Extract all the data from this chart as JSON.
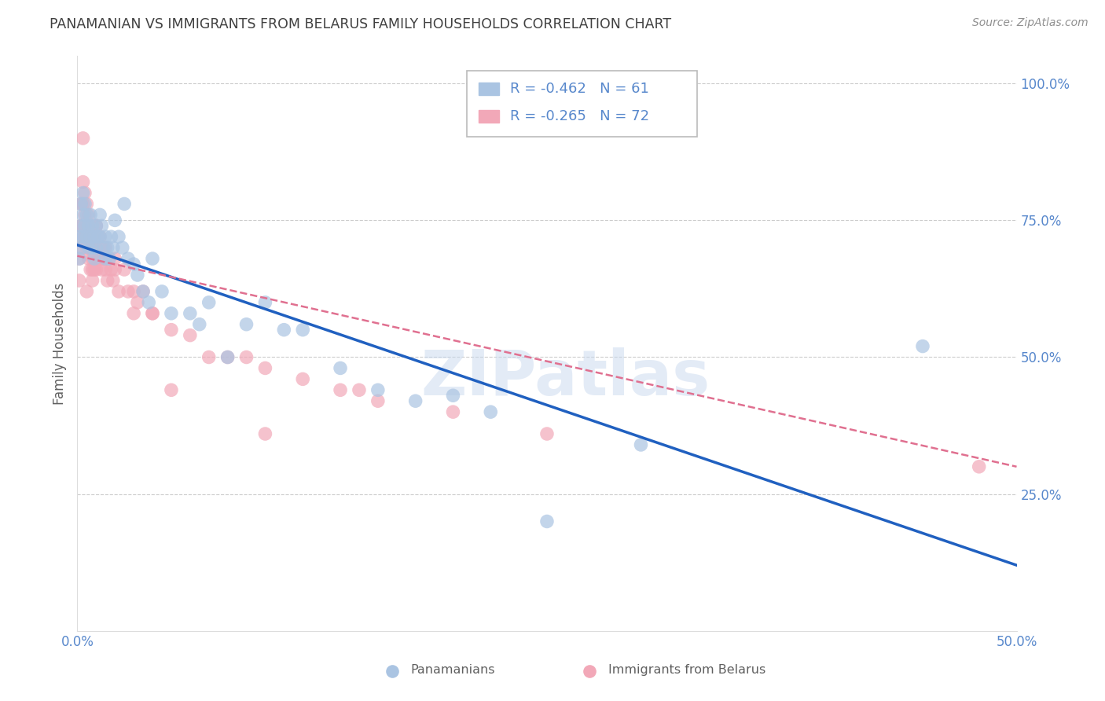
{
  "title": "PANAMANIAN VS IMMIGRANTS FROM BELARUS FAMILY HOUSEHOLDS CORRELATION CHART",
  "source": "Source: ZipAtlas.com",
  "ylabel": "Family Households",
  "watermark": "ZIPatlas",
  "xlim": [
    0.0,
    0.5
  ],
  "ylim": [
    0.0,
    1.05
  ],
  "xticks": [
    0.0,
    0.1,
    0.2,
    0.3,
    0.4,
    0.5
  ],
  "xticklabels": [
    "0.0%",
    "",
    "",
    "",
    "",
    "50.0%"
  ],
  "yticks": [
    0.25,
    0.5,
    0.75,
    1.0
  ],
  "yticklabels": [
    "25.0%",
    "50.0%",
    "75.0%",
    "100.0%"
  ],
  "blue_R": -0.462,
  "blue_N": 61,
  "pink_R": -0.265,
  "pink_N": 72,
  "blue_color": "#aac4e2",
  "pink_color": "#f2a8b8",
  "blue_line_color": "#2060c0",
  "pink_line_color": "#e07090",
  "legend_label_blue": "Panamanians",
  "legend_label_pink": "Immigrants from Belarus",
  "title_color": "#404040",
  "source_color": "#909090",
  "axis_color": "#5888cc",
  "grid_color": "#cccccc",
  "blue_line_x0": 0.0,
  "blue_line_y0": 0.705,
  "blue_line_x1": 0.5,
  "blue_line_y1": 0.12,
  "pink_line_x0": 0.0,
  "pink_line_y0": 0.685,
  "pink_line_x1": 0.5,
  "pink_line_y1": 0.3,
  "blue_x": [
    0.001,
    0.001,
    0.002,
    0.002,
    0.002,
    0.003,
    0.003,
    0.003,
    0.004,
    0.004,
    0.005,
    0.005,
    0.006,
    0.006,
    0.007,
    0.007,
    0.008,
    0.008,
    0.009,
    0.009,
    0.01,
    0.01,
    0.011,
    0.012,
    0.012,
    0.013,
    0.014,
    0.015,
    0.015,
    0.016,
    0.017,
    0.018,
    0.019,
    0.02,
    0.022,
    0.024,
    0.025,
    0.027,
    0.03,
    0.032,
    0.035,
    0.038,
    0.04,
    0.045,
    0.05,
    0.06,
    0.065,
    0.07,
    0.08,
    0.09,
    0.1,
    0.11,
    0.12,
    0.14,
    0.16,
    0.18,
    0.2,
    0.22,
    0.25,
    0.3,
    0.45
  ],
  "blue_y": [
    0.72,
    0.68,
    0.78,
    0.74,
    0.7,
    0.8,
    0.76,
    0.72,
    0.78,
    0.74,
    0.76,
    0.72,
    0.74,
    0.7,
    0.76,
    0.72,
    0.74,
    0.7,
    0.72,
    0.68,
    0.74,
    0.7,
    0.72,
    0.76,
    0.72,
    0.74,
    0.7,
    0.72,
    0.68,
    0.7,
    0.68,
    0.72,
    0.7,
    0.75,
    0.72,
    0.7,
    0.78,
    0.68,
    0.67,
    0.65,
    0.62,
    0.6,
    0.68,
    0.62,
    0.58,
    0.58,
    0.56,
    0.6,
    0.5,
    0.56,
    0.6,
    0.55,
    0.55,
    0.48,
    0.44,
    0.42,
    0.43,
    0.4,
    0.2,
    0.34,
    0.52
  ],
  "pink_x": [
    0.001,
    0.001,
    0.001,
    0.002,
    0.002,
    0.002,
    0.003,
    0.003,
    0.003,
    0.004,
    0.004,
    0.004,
    0.005,
    0.005,
    0.005,
    0.006,
    0.006,
    0.006,
    0.007,
    0.007,
    0.007,
    0.008,
    0.008,
    0.008,
    0.009,
    0.009,
    0.01,
    0.01,
    0.01,
    0.011,
    0.012,
    0.012,
    0.013,
    0.013,
    0.014,
    0.015,
    0.015,
    0.016,
    0.017,
    0.018,
    0.019,
    0.02,
    0.022,
    0.025,
    0.027,
    0.03,
    0.032,
    0.035,
    0.04,
    0.05,
    0.06,
    0.07,
    0.08,
    0.09,
    0.1,
    0.12,
    0.14,
    0.16,
    0.003,
    0.005,
    0.008,
    0.01,
    0.015,
    0.02,
    0.03,
    0.04,
    0.05,
    0.1,
    0.15,
    0.2,
    0.25,
    0.48
  ],
  "pink_y": [
    0.72,
    0.68,
    0.64,
    0.78,
    0.74,
    0.7,
    0.82,
    0.78,
    0.74,
    0.8,
    0.76,
    0.72,
    0.78,
    0.74,
    0.7,
    0.76,
    0.72,
    0.68,
    0.74,
    0.7,
    0.66,
    0.72,
    0.68,
    0.64,
    0.7,
    0.66,
    0.74,
    0.7,
    0.66,
    0.68,
    0.72,
    0.68,
    0.7,
    0.66,
    0.68,
    0.7,
    0.66,
    0.64,
    0.68,
    0.66,
    0.64,
    0.68,
    0.62,
    0.66,
    0.62,
    0.62,
    0.6,
    0.62,
    0.58,
    0.55,
    0.54,
    0.5,
    0.5,
    0.5,
    0.48,
    0.46,
    0.44,
    0.42,
    0.9,
    0.62,
    0.66,
    0.74,
    0.68,
    0.66,
    0.58,
    0.58,
    0.44,
    0.36,
    0.44,
    0.4,
    0.36,
    0.3
  ]
}
